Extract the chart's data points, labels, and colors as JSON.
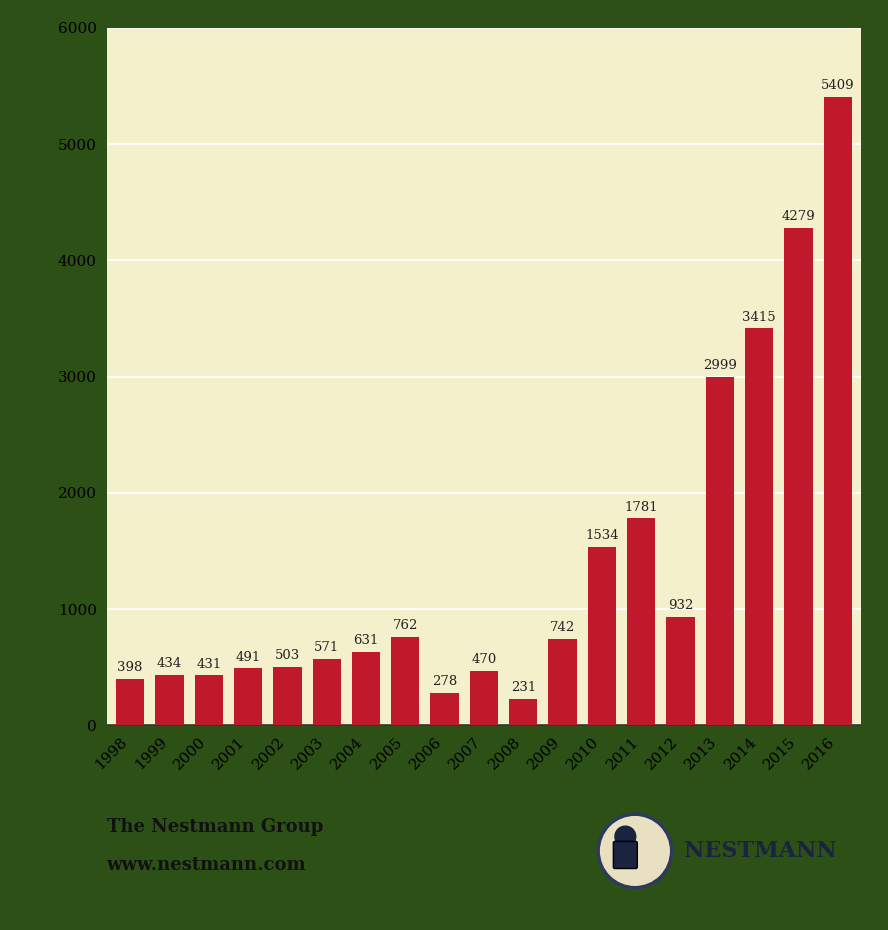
{
  "years": [
    "1998",
    "1999",
    "2000",
    "2001",
    "2002",
    "2003",
    "2004",
    "2005",
    "2006",
    "2007",
    "2008",
    "2009",
    "2010",
    "2011",
    "2012",
    "2013",
    "2014",
    "2015",
    "2016"
  ],
  "values": [
    398,
    434,
    431,
    491,
    503,
    571,
    631,
    762,
    278,
    470,
    231,
    742,
    1534,
    1781,
    932,
    2999,
    3415,
    4279,
    5409
  ],
  "bar_color": "#c0192c",
  "fig_background_color": "#2d5016",
  "plot_bg_color": "#f5f0cc",
  "ylim": [
    0,
    6000
  ],
  "yticks": [
    0,
    1000,
    2000,
    3000,
    4000,
    5000,
    6000
  ],
  "label_fontsize": 9.5,
  "tick_fontsize": 11,
  "footer_left_line1": "The Nestmann Group",
  "footer_left_line2": "www.nestmann.com",
  "footer_right": "NESTMANN",
  "grid_color": "#ffffff",
  "axis_color": "#333333",
  "label_color": "#222222"
}
